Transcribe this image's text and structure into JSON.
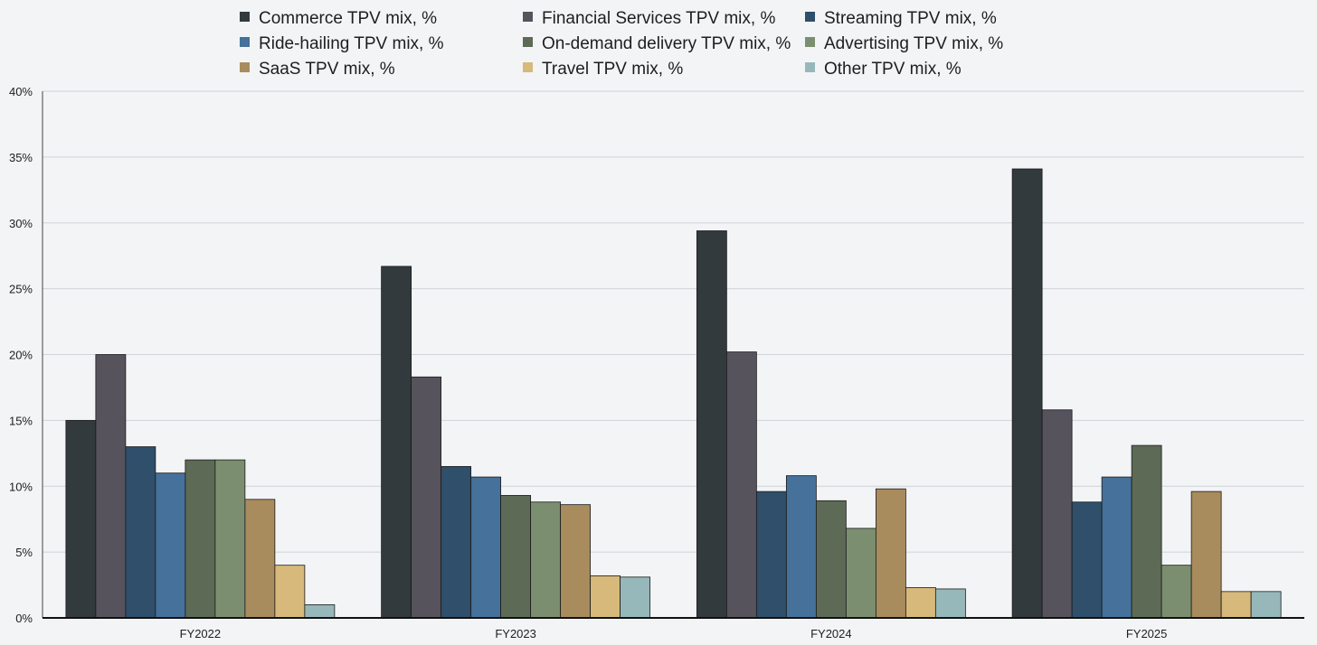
{
  "chart_data": {
    "type": "bar",
    "title": "",
    "xlabel": "",
    "ylabel": "",
    "ylim": [
      0,
      40
    ],
    "ytick_step": 5,
    "ytick_suffix": "%",
    "grid": true,
    "legend_position": "top",
    "categories": [
      "FY2022",
      "FY2023",
      "FY2024",
      "FY2025"
    ],
    "series": [
      {
        "name": "Commerce TPV mix, %",
        "color": "#323a3e",
        "values": [
          15.0,
          26.7,
          29.4,
          34.1
        ]
      },
      {
        "name": "Financial Services TPV mix, %",
        "color": "#56535d",
        "values": [
          20.0,
          18.3,
          20.2,
          15.8
        ]
      },
      {
        "name": "Streaming TPV mix, %",
        "color": "#2f4f6b",
        "values": [
          13.0,
          11.5,
          9.6,
          8.8
        ]
      },
      {
        "name": "Ride-hailing TPV mix, %",
        "color": "#45719a",
        "values": [
          11.0,
          10.7,
          10.8,
          10.7
        ]
      },
      {
        "name": "On-demand delivery TPV mix, %",
        "color": "#5d6a55",
        "values": [
          12.0,
          9.3,
          8.9,
          13.1
        ]
      },
      {
        "name": "Advertising TPV mix, %",
        "color": "#7b8f70",
        "values": [
          12.0,
          8.8,
          6.8,
          4.0
        ]
      },
      {
        "name": "SaaS TPV mix, %",
        "color": "#a98c5d",
        "values": [
          9.0,
          8.6,
          9.8,
          9.6
        ]
      },
      {
        "name": "Travel TPV mix, %",
        "color": "#d6b97b",
        "values": [
          4.0,
          3.2,
          2.3,
          2.0
        ]
      },
      {
        "name": "Other TPV mix, %",
        "color": "#97b8ba",
        "values": [
          1.0,
          3.1,
          2.2,
          2.0
        ]
      }
    ]
  }
}
